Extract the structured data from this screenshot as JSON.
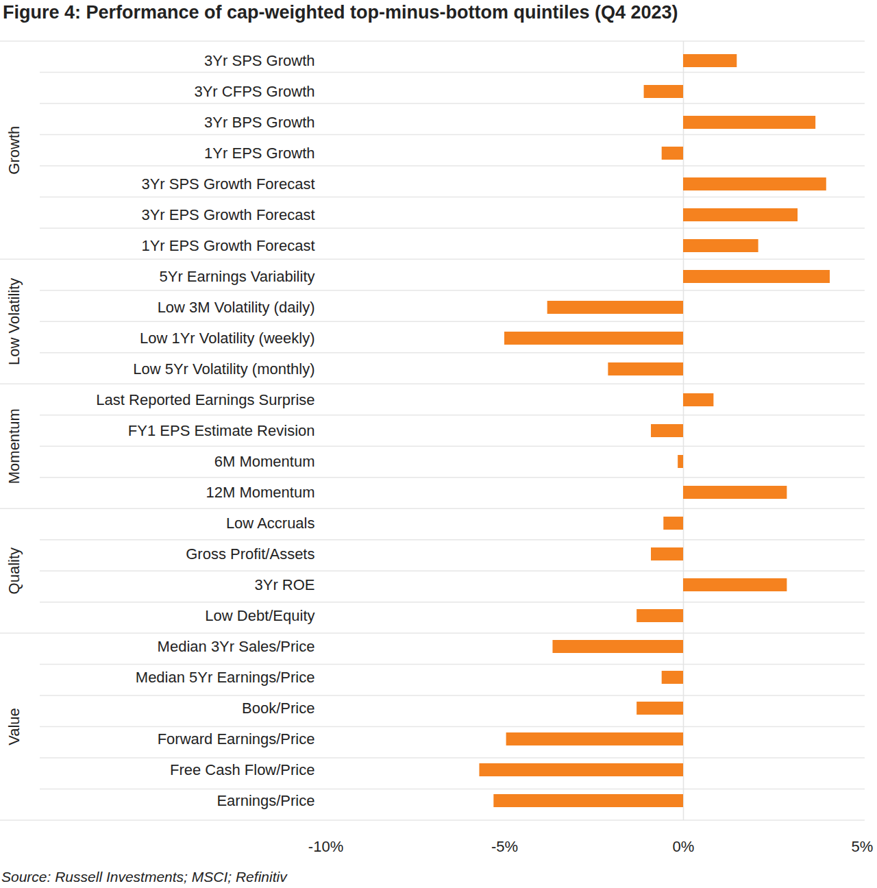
{
  "chart_data": {
    "type": "bar",
    "orientation": "horizontal",
    "title": "Figure 4: Performance of cap-weighted top-minus-bottom quintiles (Q4 2023)",
    "caption": "Source: Russell Investments; MSCI; Refinitiv",
    "categories": [
      "3Yr SPS Growth",
      "3Yr CFPS Growth",
      "3Yr BPS Growth",
      "1Yr EPS Growth",
      "3Yr SPS Growth Forecast",
      "3Yr EPS Growth Forecast",
      "1Yr EPS Growth Forecast",
      "5Yr Earnings Variability",
      "Low 3M Volatility (daily)",
      "Low 1Yr Volatility (weekly)",
      "Low 5Yr Volatility (monthly)",
      "Last Reported Earnings Surprise",
      "FY1 EPS Estimate Revision",
      "6M Momentum",
      "12M Momentum",
      "Low Accruals",
      "Gross Profit/Assets",
      "3Yr ROE",
      "Low Debt/Equity",
      "Median 3Yr Sales/Price",
      "Median 5Yr Earnings/Price",
      "Book/Price",
      "Forward Earnings/Price",
      "Free Cash Flow/Price",
      "Earnings/Price"
    ],
    "groups": [
      "Growth",
      "Growth",
      "Growth",
      "Growth",
      "Growth",
      "Growth",
      "Growth",
      "Low Volatility",
      "Low Volatility",
      "Low Volatility",
      "Low Volatility",
      "Momentum",
      "Momentum",
      "Momentum",
      "Momentum",
      "Quality",
      "Quality",
      "Quality",
      "Quality",
      "Value",
      "Value",
      "Value",
      "Value",
      "Value",
      "Value"
    ],
    "values": [
      1.5,
      -1.1,
      3.7,
      -0.6,
      4.0,
      3.2,
      2.1,
      4.1,
      -3.8,
      -5.0,
      -2.1,
      0.85,
      -0.9,
      -0.15,
      2.9,
      -0.55,
      -0.9,
      2.9,
      -1.3,
      -3.65,
      -0.6,
      -1.3,
      -4.95,
      -5.7,
      -5.3
    ],
    "color": "#f5821f",
    "xlim": [
      -10,
      5
    ],
    "xticks": [
      {
        "value": -10,
        "label": "-10%"
      },
      {
        "value": -5,
        "label": "-5%"
      },
      {
        "value": 0,
        "label": "0%"
      },
      {
        "value": 5,
        "label": "5%"
      }
    ],
    "grid": true
  }
}
